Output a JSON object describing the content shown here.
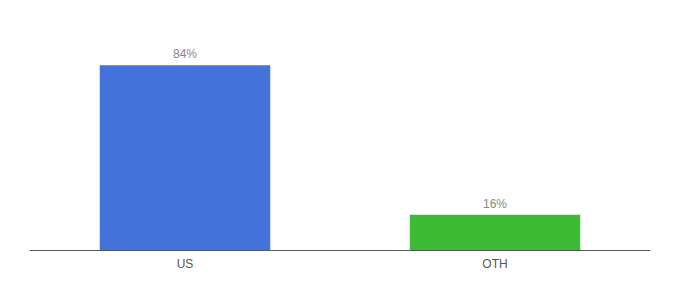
{
  "chart_data": {
    "type": "bar",
    "categories": [
      "US",
      "OTH"
    ],
    "values": [
      84,
      16
    ],
    "colors": [
      "#4472db",
      "#3dbb35"
    ],
    "value_labels": [
      "84%",
      "16%"
    ],
    "data_labels": true,
    "ylim": [
      0,
      100
    ],
    "grid": false,
    "tick_labels": "x"
  }
}
